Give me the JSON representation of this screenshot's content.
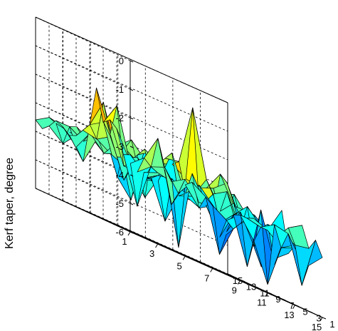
{
  "chart_data": {
    "type": "surface",
    "title": "",
    "xlabel": "",
    "ylabel": "",
    "zlabel": "Kerf taper, degree",
    "x_ticks": [
      "1",
      "3",
      "5",
      "7",
      "9",
      "11",
      "13",
      "15"
    ],
    "y_ticks": [
      "1",
      "3",
      "5",
      "7",
      "9",
      "11",
      "13",
      "15"
    ],
    "z_ticks": [
      "0",
      "-1",
      "-2",
      "-3",
      "-4",
      "-5",
      "-6"
    ],
    "xlim": [
      1,
      15
    ],
    "ylim": [
      1,
      15
    ],
    "zlim": [
      -6,
      0
    ],
    "grid": true,
    "colormap": "jet",
    "z": [
      [
        -3.3,
        -3.7,
        -3.5,
        -3.6,
        -3.3,
        -3.9,
        -3.8,
        -4.6,
        -4.0,
        -3.6,
        -3.8,
        -4.2,
        -4.0,
        -4.4,
        -3.9
      ],
      [
        -3.4,
        -5.0,
        -3.4,
        -3.2,
        -3.9,
        -3.3,
        -3.6,
        -5.4,
        -4.3,
        -3.7,
        -3.8,
        -3.5,
        -3.6,
        -5.2,
        -3.4
      ],
      [
        -2.6,
        -3.6,
        -3.2,
        -2.3,
        -4.4,
        -3.5,
        -4.1,
        -3.8,
        -4.1,
        -3.7,
        -4.4,
        -5.7,
        -4.2,
        -3.9,
        -3.8
      ],
      [
        -2.4,
        -3.8,
        -3.8,
        -3.4,
        -3.3,
        -5.8,
        -3.0,
        -3.9,
        -4.8,
        -3.8,
        -5.4,
        -3.2,
        -4.9,
        -3.4,
        -3.1
      ],
      [
        -2.6,
        -1.8,
        -3.7,
        -3.9,
        -3.6,
        -3.5,
        -3.8,
        -3.3,
        -3.8,
        -4.5,
        -3.6,
        -4.6,
        -3.6,
        -3.7,
        -3.9
      ],
      [
        -1.5,
        -2.9,
        -4.3,
        -3.3,
        -3.8,
        -5.1,
        -4.0,
        -3.8,
        -3.8,
        -4.3,
        -3.8,
        -3.3,
        -3.8,
        -4.7,
        -4.3
      ],
      [
        -2.9,
        -1.9,
        -3.6,
        -3.4,
        -3.9,
        -3.8,
        -2.6,
        -3.9,
        -4.1,
        -3.4,
        -3.1,
        -4.2,
        -4.5,
        -3.8,
        -2.9
      ],
      [
        -3.2,
        -3.3,
        -3.0,
        -3.2,
        -4.0,
        -3.9,
        -2.9,
        -2.8,
        -0.7,
        -3.0,
        -3.9,
        -3.4,
        -4.1,
        -5.2,
        -4.2
      ],
      [
        -3.5,
        -2.9,
        -2.6,
        -4.3,
        -4.9,
        -2.9,
        -3.2,
        -3.0,
        -3.3,
        -3.4,
        -3.2,
        -2.8,
        -3.9,
        -3.5,
        -3.9
      ],
      [
        -3.6,
        -4.3,
        -3.3,
        -3.6,
        -3.8,
        -3.2,
        -2.9,
        -3.7,
        -3.6,
        -3.7,
        -3.3,
        -2.6,
        -3.5,
        -3.5,
        -4.5
      ],
      [
        -3.4,
        -3.9,
        -3.2,
        -3.7,
        -3.1,
        -3.9,
        -4.6,
        -3.7,
        -3.3,
        -3.1,
        -3.8,
        -4.0,
        -3.8,
        -3.9,
        -3.6
      ],
      [
        -3.3,
        -3.3,
        -3.6,
        -3.2,
        -3.5,
        -3.8,
        -3.7,
        -3.1,
        -3.2,
        -4.1,
        -3.8,
        -3.2,
        -3.3,
        -3.1,
        -3.7
      ],
      [
        -3.6,
        -4.0,
        -3.5,
        -3.3,
        -3.7,
        -3.2,
        -2.8,
        -3.3,
        -3.2,
        -3.1,
        -2.9,
        -3.4,
        -3.5,
        -3.8,
        -4.1
      ],
      [
        -3.8,
        -3.4,
        -3.5,
        -3.5,
        -3.2,
        -3.3,
        -3.2,
        -3.5,
        -3.7,
        -3.4,
        -3.6,
        -3.3,
        -3.4,
        -3.5,
        -3.7
      ],
      [
        -3.6,
        -3.3,
        -3.4,
        -3.2,
        -3.5,
        -3.4,
        -3.3,
        -3.5,
        -3.2,
        -3.4,
        -3.6,
        -3.5,
        -3.7,
        -3.9,
        -3.5
      ]
    ]
  }
}
